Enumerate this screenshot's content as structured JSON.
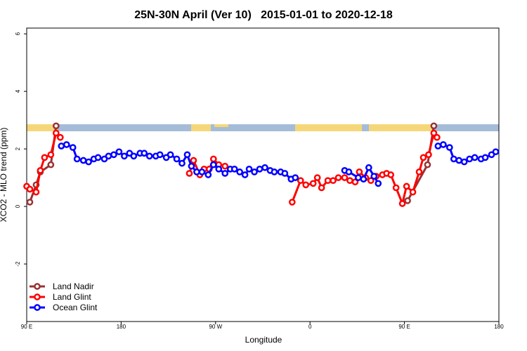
{
  "chart_data": {
    "type": "line",
    "title": "25N-30N April (Ver 10)   2015-01-01 to 2020-12-18",
    "x_label": "Longitude",
    "y_label": "XCO2 - MLO trend (ppm)",
    "xlim": [
      90,
      540
    ],
    "ylim": [
      -4,
      6.2
    ],
    "xticks": [
      {
        "value": 90,
        "label": "90 E"
      },
      180,
      {
        "value": 270,
        "label": "90 W"
      },
      {
        "value": 360,
        "label": "0"
      },
      {
        "value": 450,
        "label": "90 E"
      },
      {
        "value": 540,
        "label": "180"
      }
    ],
    "yticks": [
      -2,
      0,
      2,
      4,
      6
    ],
    "legend": "bottom-left",
    "series": [
      {
        "name": "Land Nadir",
        "color": "#993333",
        "x": [
          93,
          99,
          103,
          113,
          118,
          300,
          453,
          472,
          478
        ],
        "values": [
          0.15,
          0.75,
          1.2,
          1.45,
          2.8,
          null,
          0.2,
          1.45,
          2.8
        ]
      },
      {
        "name": "Land Glint",
        "color": "#ff0000",
        "x": [
          90,
          93,
          99,
          103,
          107,
          113,
          118,
          122,
          180,
          245,
          249,
          255,
          259,
          264,
          268,
          273,
          279,
          310,
          343,
          351,
          356,
          363,
          367,
          371,
          377,
          382,
          387,
          393,
          398,
          403,
          407,
          413,
          418,
          423,
          429,
          433,
          437,
          442,
          448,
          452,
          458,
          464,
          468,
          473,
          478,
          481
        ],
        "values": [
          0.7,
          0.6,
          0.5,
          1.25,
          1.7,
          1.8,
          2.55,
          2.4,
          null,
          1.15,
          1.6,
          1.1,
          1.3,
          1.3,
          1.65,
          1.45,
          1.4,
          null,
          0.15,
          0.9,
          0.75,
          0.8,
          1.0,
          0.65,
          0.9,
          0.9,
          1.0,
          1.0,
          0.9,
          0.85,
          1.2,
          1.0,
          0.9,
          1.05,
          1.1,
          1.15,
          1.1,
          0.65,
          0.1,
          0.7,
          0.5,
          1.2,
          1.7,
          1.8,
          2.55,
          2.4
        ]
      },
      {
        "name": "Ocean Glint",
        "color": "#0000ff",
        "x": [
          123,
          128,
          134,
          138,
          144,
          149,
          154,
          158,
          164,
          168,
          173,
          178,
          183,
          188,
          192,
          198,
          202,
          207,
          213,
          217,
          223,
          227,
          233,
          238,
          243,
          247,
          252,
          257,
          263,
          268,
          273,
          279,
          284,
          288,
          293,
          298,
          302,
          307,
          312,
          317,
          322,
          326,
          332,
          336,
          342,
          346,
          370,
          393,
          397,
          406,
          411,
          416,
          421,
          425,
          450,
          482,
          487,
          493,
          497,
          502,
          507,
          512,
          517,
          523,
          527,
          533,
          537
        ],
        "values": [
          2.1,
          2.15,
          2.05,
          1.65,
          1.6,
          1.55,
          1.65,
          1.7,
          1.65,
          1.75,
          1.8,
          1.9,
          1.75,
          1.85,
          1.75,
          1.85,
          1.85,
          1.75,
          1.75,
          1.8,
          1.7,
          1.8,
          1.65,
          1.5,
          1.8,
          1.4,
          1.2,
          1.2,
          1.1,
          1.45,
          1.3,
          1.15,
          1.3,
          1.3,
          1.2,
          1.1,
          1.3,
          1.2,
          1.3,
          1.35,
          1.25,
          1.2,
          1.2,
          1.15,
          0.95,
          1.0,
          null,
          1.25,
          1.2,
          1.0,
          0.95,
          1.35,
          1.05,
          0.8,
          null,
          2.1,
          2.15,
          2.05,
          1.65,
          1.6,
          1.55,
          1.65,
          1.7,
          1.65,
          1.7,
          1.8,
          1.9
        ]
      }
    ]
  }
}
